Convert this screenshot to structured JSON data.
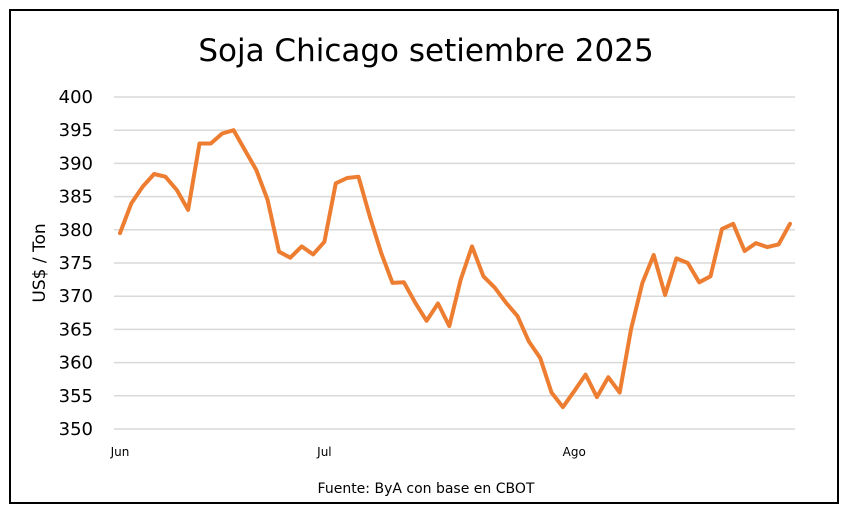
{
  "chart_data": {
    "type": "line",
    "title": "Soja Chicago setiembre 2025",
    "xlabel": "",
    "ylabel": "US$ / Ton",
    "source": "Fuente: ByA con base en CBOT",
    "ylim": [
      350,
      400
    ],
    "yticks": [
      350,
      355,
      360,
      365,
      370,
      375,
      380,
      385,
      390,
      395,
      400
    ],
    "xtick_labels": [
      {
        "label": "Jun",
        "index": 0
      },
      {
        "label": "Jul",
        "index": 18
      },
      {
        "label": "Ago",
        "index": 40
      }
    ],
    "grid": true,
    "line_color": "#ED7D31",
    "series": [
      {
        "name": "",
        "values": [
          379.5,
          384,
          386.5,
          388.4,
          388,
          386,
          383,
          393,
          393,
          394.5,
          395,
          392,
          389,
          384.5,
          376.7,
          375.8,
          377.5,
          376.3,
          378.2,
          387,
          387.8,
          388,
          382,
          376.5,
          372,
          372.1,
          369,
          366.3,
          368.9,
          365.5,
          372.5,
          377.5,
          373,
          371.3,
          369,
          367,
          363.2,
          360.7,
          355.5,
          353.3,
          355.7,
          358.2,
          354.8,
          357.8,
          355.5,
          365,
          372,
          376.2,
          370.2,
          375.7,
          375,
          372.1,
          373,
          380.1,
          380.9,
          376.8,
          378,
          377.4,
          377.8,
          380.9
        ]
      }
    ]
  }
}
